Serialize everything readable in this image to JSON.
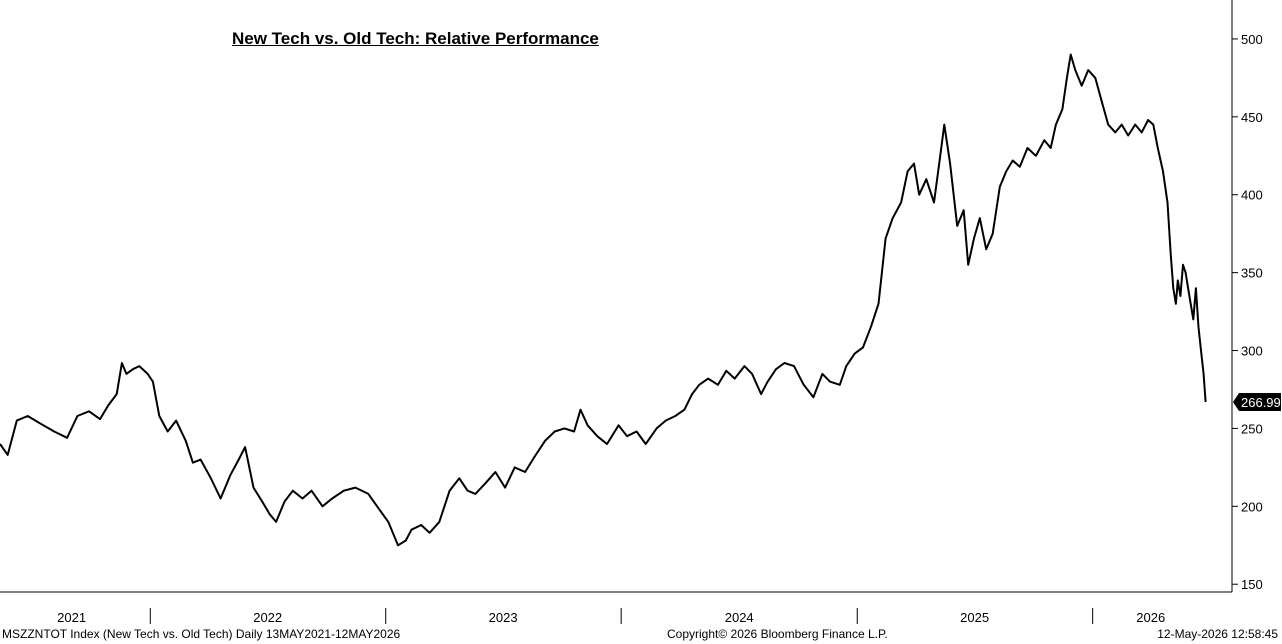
{
  "chart_data": {
    "type": "line",
    "title": "New Tech vs. Old Tech: Relative Performance",
    "series": [
      {
        "last_value_label": "266.99",
        "points": [
          [
            "2021-05-13",
            240
          ],
          [
            "2021-05-25",
            233
          ],
          [
            "2021-06-08",
            255
          ],
          [
            "2021-06-25",
            258
          ],
          [
            "2021-07-15",
            253
          ],
          [
            "2021-08-05",
            248
          ],
          [
            "2021-08-25",
            244
          ],
          [
            "2021-09-10",
            258
          ],
          [
            "2021-09-28",
            261
          ],
          [
            "2021-10-15",
            256
          ],
          [
            "2021-10-28",
            265
          ],
          [
            "2021-11-10",
            272
          ],
          [
            "2021-11-18",
            292
          ],
          [
            "2021-11-25",
            285
          ],
          [
            "2021-12-05",
            288
          ],
          [
            "2021-12-15",
            290
          ],
          [
            "2021-12-28",
            285
          ],
          [
            "2022-01-05",
            280
          ],
          [
            "2022-01-15",
            258
          ],
          [
            "2022-01-28",
            248
          ],
          [
            "2022-02-10",
            255
          ],
          [
            "2022-02-25",
            242
          ],
          [
            "2022-03-08",
            228
          ],
          [
            "2022-03-20",
            230
          ],
          [
            "2022-04-05",
            218
          ],
          [
            "2022-04-20",
            205
          ],
          [
            "2022-05-05",
            220
          ],
          [
            "2022-05-18",
            230
          ],
          [
            "2022-05-28",
            238
          ],
          [
            "2022-06-10",
            212
          ],
          [
            "2022-06-25",
            202
          ],
          [
            "2022-07-05",
            195
          ],
          [
            "2022-07-15",
            190
          ],
          [
            "2022-07-28",
            203
          ],
          [
            "2022-08-10",
            210
          ],
          [
            "2022-08-25",
            205
          ],
          [
            "2022-09-08",
            210
          ],
          [
            "2022-09-25",
            200
          ],
          [
            "2022-10-10",
            205
          ],
          [
            "2022-10-28",
            210
          ],
          [
            "2022-11-15",
            212
          ],
          [
            "2022-12-05",
            208
          ],
          [
            "2022-12-22",
            198
          ],
          [
            "2023-01-05",
            190
          ],
          [
            "2023-01-20",
            175
          ],
          [
            "2023-02-01",
            178
          ],
          [
            "2023-02-10",
            185
          ],
          [
            "2023-02-25",
            188
          ],
          [
            "2023-03-10",
            183
          ],
          [
            "2023-03-25",
            190
          ],
          [
            "2023-04-10",
            210
          ],
          [
            "2023-04-25",
            218
          ],
          [
            "2023-05-08",
            210
          ],
          [
            "2023-05-20",
            208
          ],
          [
            "2023-06-05",
            215
          ],
          [
            "2023-06-20",
            222
          ],
          [
            "2023-07-05",
            212
          ],
          [
            "2023-07-20",
            225
          ],
          [
            "2023-08-05",
            222
          ],
          [
            "2023-08-20",
            232
          ],
          [
            "2023-09-05",
            242
          ],
          [
            "2023-09-20",
            248
          ],
          [
            "2023-10-05",
            250
          ],
          [
            "2023-10-20",
            248
          ],
          [
            "2023-10-30",
            262
          ],
          [
            "2023-11-10",
            252
          ],
          [
            "2023-11-25",
            245
          ],
          [
            "2023-12-10",
            240
          ],
          [
            "2023-12-28",
            252
          ],
          [
            "2024-01-10",
            245
          ],
          [
            "2024-01-25",
            248
          ],
          [
            "2024-02-08",
            240
          ],
          [
            "2024-02-25",
            250
          ],
          [
            "2024-03-10",
            255
          ],
          [
            "2024-03-25",
            258
          ],
          [
            "2024-04-08",
            262
          ],
          [
            "2024-04-20",
            272
          ],
          [
            "2024-05-01",
            278
          ],
          [
            "2024-05-15",
            282
          ],
          [
            "2024-05-30",
            278
          ],
          [
            "2024-06-12",
            287
          ],
          [
            "2024-06-25",
            282
          ],
          [
            "2024-07-10",
            290
          ],
          [
            "2024-07-22",
            285
          ],
          [
            "2024-08-05",
            272
          ],
          [
            "2024-08-15",
            280
          ],
          [
            "2024-08-28",
            288
          ],
          [
            "2024-09-10",
            292
          ],
          [
            "2024-09-25",
            290
          ],
          [
            "2024-10-10",
            278
          ],
          [
            "2024-10-25",
            270
          ],
          [
            "2024-11-08",
            285
          ],
          [
            "2024-11-20",
            280
          ],
          [
            "2024-12-05",
            278
          ],
          [
            "2024-12-15",
            290
          ],
          [
            "2024-12-28",
            298
          ],
          [
            "2025-01-10",
            302
          ],
          [
            "2025-01-22",
            315
          ],
          [
            "2025-02-03",
            330
          ],
          [
            "2025-02-14",
            372
          ],
          [
            "2025-02-25",
            385
          ],
          [
            "2025-03-10",
            395
          ],
          [
            "2025-03-20",
            415
          ],
          [
            "2025-03-30",
            420
          ],
          [
            "2025-04-07",
            400
          ],
          [
            "2025-04-18",
            410
          ],
          [
            "2025-04-30",
            395
          ],
          [
            "2025-05-08",
            420
          ],
          [
            "2025-05-16",
            445
          ],
          [
            "2025-05-25",
            420
          ],
          [
            "2025-06-05",
            380
          ],
          [
            "2025-06-15",
            390
          ],
          [
            "2025-06-22",
            355
          ],
          [
            "2025-07-01",
            372
          ],
          [
            "2025-07-10",
            385
          ],
          [
            "2025-07-20",
            365
          ],
          [
            "2025-07-30",
            375
          ],
          [
            "2025-08-10",
            405
          ],
          [
            "2025-08-20",
            415
          ],
          [
            "2025-08-30",
            422
          ],
          [
            "2025-09-10",
            418
          ],
          [
            "2025-09-22",
            430
          ],
          [
            "2025-10-05",
            425
          ],
          [
            "2025-10-18",
            435
          ],
          [
            "2025-10-28",
            430
          ],
          [
            "2025-11-05",
            445
          ],
          [
            "2025-11-15",
            455
          ],
          [
            "2025-11-22",
            475
          ],
          [
            "2025-11-28",
            490
          ],
          [
            "2025-12-05",
            480
          ],
          [
            "2025-12-15",
            470
          ],
          [
            "2025-12-25",
            480
          ],
          [
            "2026-01-05",
            475
          ],
          [
            "2026-01-15",
            460
          ],
          [
            "2026-01-25",
            445
          ],
          [
            "2026-02-05",
            440
          ],
          [
            "2026-02-15",
            445
          ],
          [
            "2026-02-25",
            438
          ],
          [
            "2026-03-08",
            445
          ],
          [
            "2026-03-18",
            440
          ],
          [
            "2026-03-28",
            448
          ],
          [
            "2026-04-05",
            445
          ],
          [
            "2026-04-12",
            430
          ],
          [
            "2026-04-20",
            415
          ],
          [
            "2026-04-27",
            395
          ],
          [
            "2026-05-02",
            362
          ],
          [
            "2026-05-06",
            340
          ],
          [
            "2026-05-10",
            330
          ],
          [
            "2026-05-13",
            345
          ],
          [
            "2026-05-17",
            335
          ],
          [
            "2026-05-21",
            355
          ],
          [
            "2026-05-25",
            350
          ],
          [
            "2026-05-29",
            340
          ],
          [
            "2026-06-02",
            330
          ],
          [
            "2026-06-06",
            320
          ],
          [
            "2026-06-10",
            340
          ],
          [
            "2026-06-14",
            315
          ],
          [
            "2026-06-18",
            300
          ],
          [
            "2026-06-22",
            285
          ],
          [
            "2026-06-25",
            266.99
          ]
        ]
      }
    ],
    "y_axis": {
      "position": "right",
      "min": 145,
      "max": 525,
      "ticks": [
        150,
        200,
        250,
        300,
        350,
        400,
        450,
        500
      ]
    },
    "x_axis": {
      "min": "2021-05-13",
      "max": "2026-08-05",
      "year_labels": [
        {
          "label": "2021",
          "date": "2021-09-01"
        },
        {
          "label": "2022",
          "date": "2022-07-02"
        },
        {
          "label": "2023",
          "date": "2023-07-02"
        },
        {
          "label": "2024",
          "date": "2024-07-02"
        },
        {
          "label": "2025",
          "date": "2025-07-02"
        },
        {
          "label": "2026",
          "date": "2026-04-01"
        }
      ],
      "separators": [
        "2022-01-01",
        "2023-01-01",
        "2024-01-01",
        "2025-01-01",
        "2026-01-01"
      ]
    },
    "grid": false,
    "line_color": "#000000"
  },
  "footer": {
    "source": "MSZZNTOT Index (New Tech vs. Old Tech) Daily 13MAY2021-12MAY2026",
    "copyright": "Copyright© 2026 Bloomberg Finance L.P.",
    "timestamp": "12-May-2026 12:58:45"
  }
}
